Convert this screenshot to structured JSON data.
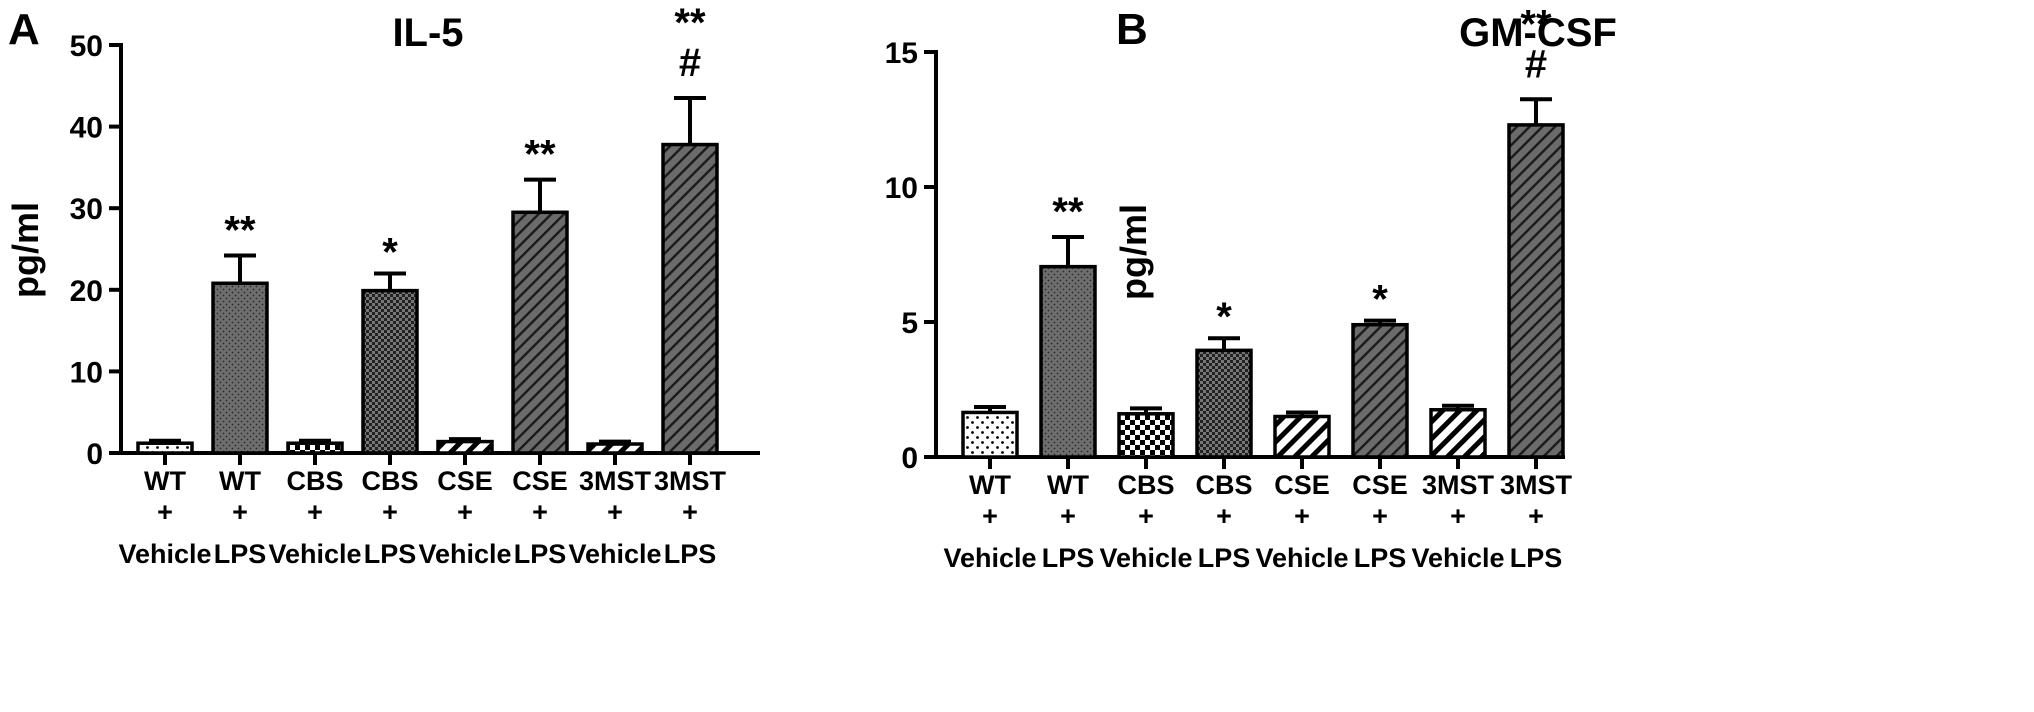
{
  "colors": {
    "bar_fill": "#6b6b6b",
    "light_fill": "#ffffff",
    "ink": "#000000"
  },
  "chart_data": [
    {
      "panel": "A",
      "type": "bar",
      "title": "IL-5",
      "ylabel": "pg/ml",
      "xlabel": "",
      "ylim": [
        0,
        50
      ],
      "yticks": [
        0,
        10,
        20,
        30,
        40,
        50
      ],
      "categories": [
        [
          "WT",
          "+",
          "Vehicle"
        ],
        [
          "WT",
          "+",
          "LPS"
        ],
        [
          "CBS",
          "+",
          "Vehicle"
        ],
        [
          "CBS",
          "+",
          "LPS"
        ],
        [
          "CSE",
          "+",
          "Vehicle"
        ],
        [
          "CSE",
          "+",
          "LPS"
        ],
        [
          "3MST",
          "+",
          "Vehicle"
        ],
        [
          "3MST",
          "+",
          "LPS"
        ]
      ],
      "values": [
        1.2,
        20.8,
        1.2,
        19.9,
        1.4,
        29.5,
        1.1,
        37.8
      ],
      "errors": [
        0.3,
        3.4,
        0.3,
        2.1,
        0.3,
        4.0,
        0.3,
        5.7
      ],
      "patterns": [
        "sparse-dots",
        "dots",
        "checker",
        "checker",
        "diag",
        "diag-dense",
        "diag",
        "diag-dense"
      ],
      "annotations": [
        "",
        "**",
        "",
        "*",
        "",
        "**",
        "",
        "**\n#"
      ]
    },
    {
      "panel": "B",
      "type": "bar",
      "title": "GM-CSF",
      "ylabel": "pg/ml",
      "xlabel": "",
      "ylim": [
        0,
        15
      ],
      "yticks": [
        0,
        5,
        10,
        15
      ],
      "categories": [
        [
          "WT",
          "+",
          "Vehicle"
        ],
        [
          "WT",
          "+",
          "LPS"
        ],
        [
          "CBS",
          "+",
          "Vehicle"
        ],
        [
          "CBS",
          "+",
          "LPS"
        ],
        [
          "CSE",
          "+",
          "Vehicle"
        ],
        [
          "CSE",
          "+",
          "LPS"
        ],
        [
          "3MST",
          "+",
          "Vehicle"
        ],
        [
          "3MST",
          "+",
          "LPS"
        ]
      ],
      "values": [
        1.65,
        7.05,
        1.6,
        3.95,
        1.5,
        4.9,
        1.75,
        12.3
      ],
      "errors": [
        0.2,
        1.1,
        0.2,
        0.45,
        0.15,
        0.15,
        0.15,
        0.95
      ],
      "patterns": [
        "sparse-dots",
        "dots",
        "checker",
        "checker",
        "diag",
        "diag-dense",
        "diag",
        "diag-dense"
      ],
      "annotations": [
        "",
        "**",
        "",
        "*",
        "",
        "*",
        "",
        "**\n#"
      ]
    }
  ]
}
